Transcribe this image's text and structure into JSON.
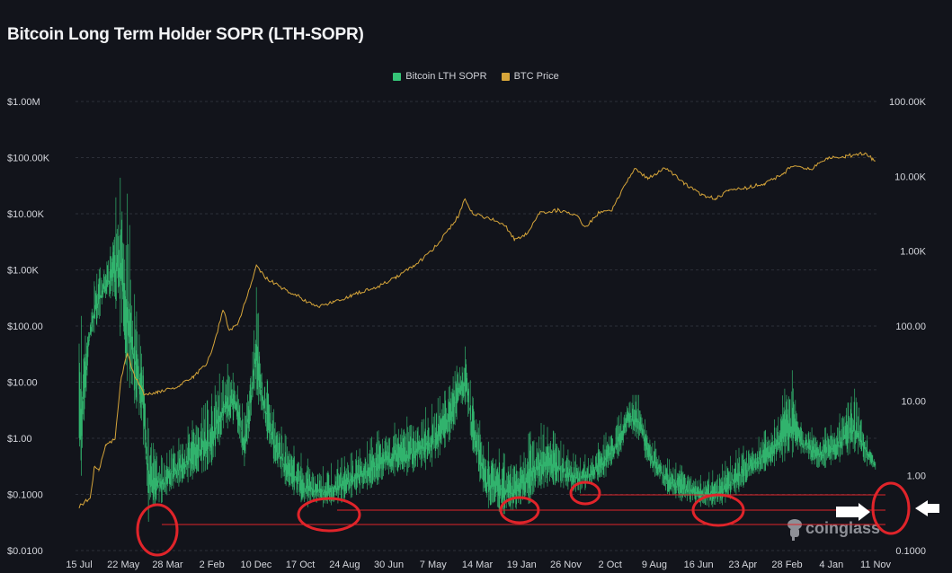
{
  "title": "Bitcoin Long Term Holder SOPR (LTH-SOPR)",
  "watermark": "coinglass",
  "colors": {
    "background": "#12141b",
    "sopr": "#35c477",
    "price": "#d6a53a",
    "grid": "#2c2f38",
    "annotation": "#e0242a",
    "arrow": "#ffffff"
  },
  "chart_data": {
    "type": "line",
    "title": "Bitcoin Long Term Holder SOPR (LTH-SOPR)",
    "legend_position": "top",
    "grid": true,
    "x_ticks": [
      "15 Jul",
      "22 May",
      "28 Mar",
      "2 Feb",
      "10 Dec",
      "17 Oct",
      "24 Aug",
      "30 Jun",
      "7 May",
      "14 Mar",
      "19 Jan",
      "26 Nov",
      "2 Oct",
      "9 Aug",
      "16 Jun",
      "23 Apr",
      "28 Feb",
      "4 Jan",
      "11 Nov"
    ],
    "x_range": [
      "2010-07-15",
      "2025-11-11"
    ],
    "left_axis": {
      "scale": "log",
      "range": [
        0.01,
        1000000
      ],
      "ticks": [
        "$1.00M",
        "$100.00K",
        "$10.00K",
        "$1.00K",
        "$100.00",
        "$10.00",
        "$1.00",
        "$0.1000",
        "$0.0100"
      ]
    },
    "right_axis": {
      "scale": "log",
      "range": [
        0.1,
        100000
      ],
      "ticks": [
        "100.00K",
        "10.00K",
        "1.00K",
        "100.00",
        "10.00",
        "1.00",
        "0.1000"
      ]
    },
    "series": [
      {
        "name": "Bitcoin LTH SOPR",
        "axis": "right",
        "style": "band",
        "points": [
          [
            "2010-07-15",
            145,
            0.33
          ],
          [
            "2010-09-28",
            110,
            63
          ],
          [
            "2010-11-01",
            437,
            83
          ],
          [
            "2011-01-04",
            760,
            191
          ],
          [
            "2011-03-08",
            1320,
            251
          ],
          [
            "2011-04-08",
            9100,
            145
          ],
          [
            "2011-06-10",
            10500,
            21
          ],
          [
            "2011-08-10",
            251,
            9.1
          ],
          [
            "2011-10-01",
            36,
            5.2
          ],
          [
            "2011-11-15",
            12,
            0.19
          ],
          [
            "2011-12-28",
            4.0,
            0.33
          ],
          [
            "2012-02-18",
            1.74,
            0.44
          ],
          [
            "2012-04-22",
            2.3,
            0.66
          ],
          [
            "2012-07-27",
            4.0,
            0.76
          ],
          [
            "2012-10-28",
            6.9,
            1.0
          ],
          [
            "2013-01-30",
            12,
            1.32
          ],
          [
            "2013-05-05",
            36,
            4.0
          ],
          [
            "2013-07-18",
            21,
            5.2
          ],
          [
            "2013-09-20",
            6.9,
            1.32
          ],
          [
            "2013-12-12",
            331,
            12
          ],
          [
            "2014-01-25",
            36,
            5.2
          ],
          [
            "2014-04-20",
            6.9,
            1.32
          ],
          [
            "2014-07-23",
            3.0,
            0.66
          ],
          [
            "2014-11-25",
            1.74,
            0.38
          ],
          [
            "2015-04-01",
            1.32,
            0.38
          ],
          [
            "2015-08-04",
            1.74,
            0.44
          ],
          [
            "2015-12-08",
            2.3,
            0.58
          ],
          [
            "2016-04-15",
            4.0,
            0.76
          ],
          [
            "2016-08-18",
            5.2,
            1.0
          ],
          [
            "2016-12-24",
            6.9,
            1.0
          ],
          [
            "2017-04-30",
            9.1,
            1.32
          ],
          [
            "2017-09-03",
            16,
            3.0
          ],
          [
            "2017-11-05",
            36,
            6.9
          ],
          [
            "2017-12-23",
            55,
            9.1
          ],
          [
            "2018-02-06",
            12,
            2.3
          ],
          [
            "2018-05-12",
            3.0,
            0.38
          ],
          [
            "2018-08-14",
            2.3,
            0.33
          ],
          [
            "2018-10-19",
            1.74,
            0.29
          ],
          [
            "2018-12-20",
            2.3,
            0.33
          ],
          [
            "2019-03-25",
            4.0,
            0.44
          ],
          [
            "2019-05-27",
            5.2,
            0.66
          ],
          [
            "2019-08-29",
            4.0,
            0.76
          ],
          [
            "2019-12-02",
            2.3,
            0.66
          ],
          [
            "2020-03-06",
            1.74,
            0.58
          ],
          [
            "2020-06-09",
            2.3,
            0.76
          ],
          [
            "2020-09-12",
            4.0,
            1.0
          ],
          [
            "2020-12-16",
            6.9,
            2.0
          ],
          [
            "2021-02-17",
            12,
            4.0
          ],
          [
            "2021-04-22",
            12,
            3.0
          ],
          [
            "2021-06-26",
            4.0,
            1.32
          ],
          [
            "2021-10-30",
            1.74,
            0.58
          ],
          [
            "2022-03-05",
            1.32,
            0.44
          ],
          [
            "2022-07-09",
            1.0,
            0.38
          ],
          [
            "2022-11-10",
            1.32,
            0.38
          ],
          [
            "2023-03-17",
            2.3,
            0.58
          ],
          [
            "2023-07-22",
            3.0,
            1.0
          ],
          [
            "2023-11-24",
            5.2,
            1.32
          ],
          [
            "2024-04-01",
            28,
            1.74
          ],
          [
            "2024-06-02",
            5.2,
            2.0
          ],
          [
            "2024-10-07",
            4.0,
            1.15
          ],
          [
            "2025-02-10",
            5.2,
            1.51
          ],
          [
            "2025-06-17",
            24,
            1.51
          ],
          [
            "2025-09-20",
            3.0,
            1.32
          ],
          [
            "2025-11-11",
            1.74,
            1.15
          ]
        ]
      },
      {
        "name": "BTC Price",
        "axis": "left",
        "style": "line",
        "points": [
          [
            "2010-07-15",
            0.061
          ],
          [
            "2010-10-01",
            0.088
          ],
          [
            "2010-11-01",
            0.32
          ],
          [
            "2010-12-01",
            0.27
          ],
          [
            "2011-01-20",
            0.8
          ],
          [
            "2011-03-25",
            0.96
          ],
          [
            "2011-05-08",
            12.7
          ],
          [
            "2011-06-20",
            31.9
          ],
          [
            "2011-08-10",
            12.7
          ],
          [
            "2011-10-15",
            6.1
          ],
          [
            "2012-01-20",
            6.5
          ],
          [
            "2012-06-25",
            8.8
          ],
          [
            "2012-09-28",
            12.7
          ],
          [
            "2013-01-01",
            22
          ],
          [
            "2013-03-05",
            67
          ],
          [
            "2013-04-22",
            201
          ],
          [
            "2013-06-05",
            80
          ],
          [
            "2013-08-08",
            116
          ],
          [
            "2013-10-10",
            350
          ],
          [
            "2013-12-12",
            1138
          ],
          [
            "2014-02-15",
            731
          ],
          [
            "2014-05-20",
            506
          ],
          [
            "2014-09-24",
            350
          ],
          [
            "2015-01-30",
            217
          ],
          [
            "2015-06-03",
            261
          ],
          [
            "2015-10-08",
            350
          ],
          [
            "2016-04-15",
            506
          ],
          [
            "2016-08-18",
            731
          ],
          [
            "2016-12-24",
            1180
          ],
          [
            "2017-04-30",
            2208
          ],
          [
            "2017-09-03",
            5546
          ],
          [
            "2017-11-05",
            9638
          ],
          [
            "2017-12-18",
            18707
          ],
          [
            "2018-02-06",
            10375
          ],
          [
            "2018-06-13",
            8017
          ],
          [
            "2018-09-15",
            6668
          ],
          [
            "2018-12-01",
            3436
          ],
          [
            "2019-02-20",
            4285
          ],
          [
            "2019-05-27",
            10375
          ],
          [
            "2019-10-01",
            11588
          ],
          [
            "2020-02-05",
            9638
          ],
          [
            "2020-04-08",
            5546
          ],
          [
            "2020-07-13",
            10375
          ],
          [
            "2020-10-15",
            11588
          ],
          [
            "2021-01-20",
            34995
          ],
          [
            "2021-03-22",
            65464
          ],
          [
            "2021-06-26",
            42073
          ],
          [
            "2021-10-30",
            65464
          ],
          [
            "2022-03-05",
            34995
          ],
          [
            "2022-07-09",
            21677
          ],
          [
            "2022-10-12",
            18707
          ],
          [
            "2023-01-15",
            26062
          ],
          [
            "2023-05-20",
            29107
          ],
          [
            "2023-09-24",
            34995
          ],
          [
            "2024-01-29",
            50582
          ],
          [
            "2024-04-01",
            73114
          ],
          [
            "2024-08-05",
            60814
          ],
          [
            "2024-12-10",
            98175
          ],
          [
            "2025-04-15",
            105682
          ],
          [
            "2025-08-20",
            118032
          ],
          [
            "2025-10-22",
            94624
          ],
          [
            "2025-11-11",
            87902
          ]
        ]
      }
    ]
  }
}
